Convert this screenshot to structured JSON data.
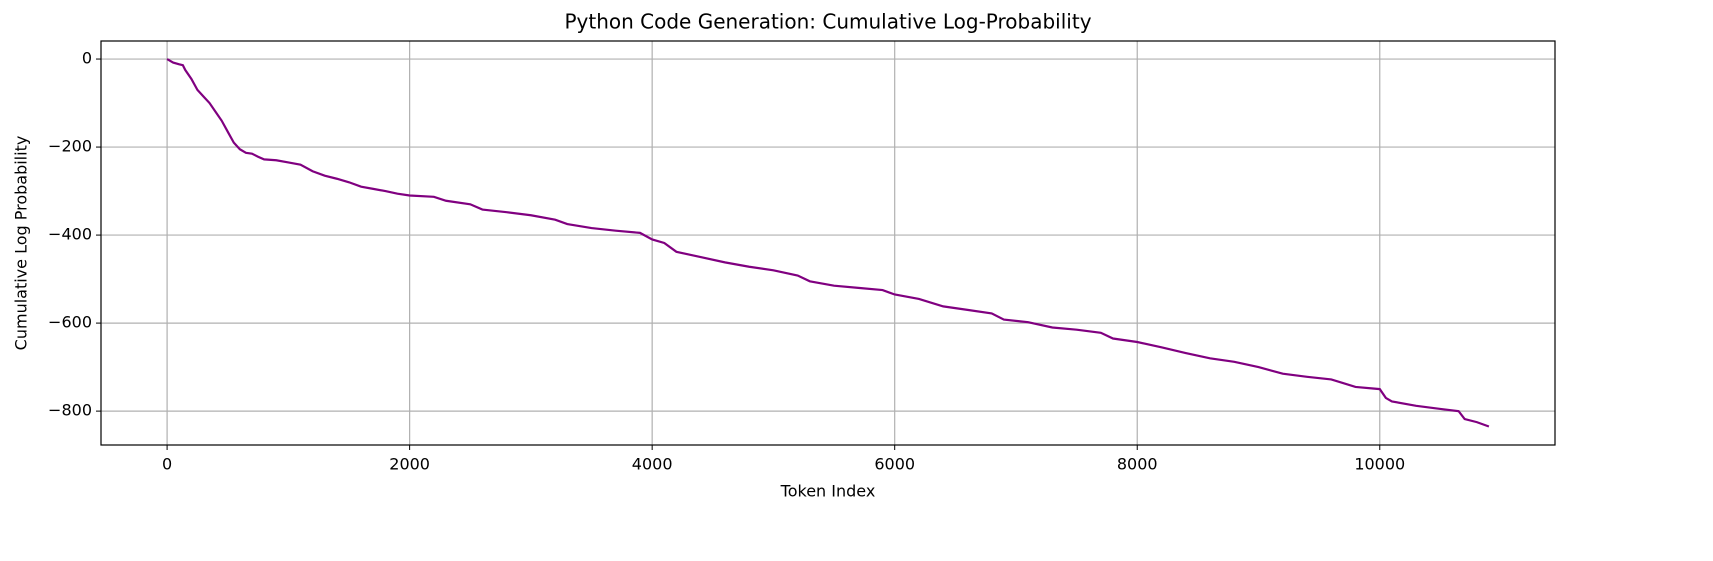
{
  "chart_data": {
    "type": "line",
    "title": "Python Code Generation: Cumulative Log-Probability",
    "x_label": "Token Index",
    "y_label": "Cumulative Log Probability",
    "x": [
      0,
      50,
      100,
      130,
      150,
      200,
      250,
      300,
      350,
      400,
      450,
      500,
      550,
      600,
      650,
      700,
      750,
      800,
      900,
      1000,
      1100,
      1200,
      1300,
      1400,
      1500,
      1600,
      1700,
      1800,
      1900,
      2000,
      2200,
      2300,
      2500,
      2600,
      2800,
      3000,
      3200,
      3300,
      3500,
      3700,
      3900,
      4000,
      4100,
      4200,
      4400,
      4600,
      4800,
      5000,
      5200,
      5300,
      5500,
      5700,
      5900,
      6000,
      6200,
      6400,
      6600,
      6800,
      6900,
      7100,
      7300,
      7500,
      7700,
      7800,
      8000,
      8200,
      8400,
      8600,
      8800,
      9000,
      9200,
      9400,
      9600,
      9800,
      10000,
      10050,
      10100,
      10300,
      10500,
      10650,
      10700,
      10800,
      10900
    ],
    "series": [
      {
        "name": "Cumulative Log Probability",
        "color": "#800080",
        "values": [
          0,
          -8,
          -12,
          -14,
          -25,
          -45,
          -70,
          -85,
          -100,
          -120,
          -140,
          -165,
          -190,
          -205,
          -213,
          -215,
          -222,
          -228,
          -230,
          -235,
          -240,
          -255,
          -265,
          -272,
          -280,
          -290,
          -295,
          -300,
          -306,
          -310,
          -313,
          -322,
          -330,
          -342,
          -348,
          -355,
          -365,
          -375,
          -384,
          -390,
          -395,
          -410,
          -418,
          -438,
          -450,
          -462,
          -472,
          -480,
          -492,
          -505,
          -515,
          -520,
          -525,
          -535,
          -545,
          -562,
          -570,
          -578,
          -592,
          -598,
          -610,
          -615,
          -622,
          -635,
          -643,
          -655,
          -668,
          -680,
          -688,
          -700,
          -715,
          -722,
          -728,
          -745,
          -750,
          -770,
          -778,
          -788,
          -795,
          -800,
          -818,
          -825,
          -835
        ]
      }
    ],
    "xlim": [
      -545,
      11445
    ],
    "ylim": [
      -877,
      41
    ],
    "xticks": [
      0,
      2000,
      4000,
      6000,
      8000,
      10000
    ],
    "yticks": [
      {
        "value": -800,
        "label": "−800"
      },
      {
        "value": -600,
        "label": "−600"
      },
      {
        "value": -400,
        "label": "−400"
      },
      {
        "value": -200,
        "label": "−200"
      },
      0
    ],
    "grid": true
  }
}
